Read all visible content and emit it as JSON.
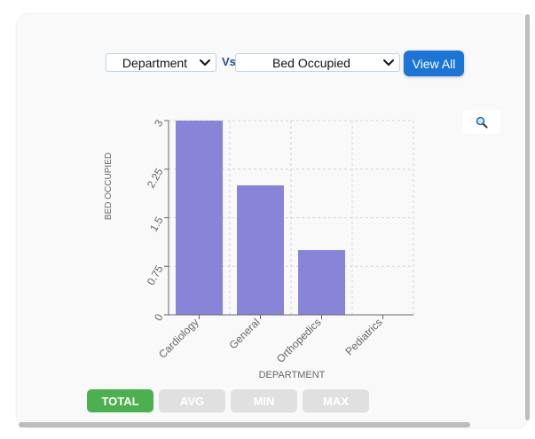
{
  "controls": {
    "x_select": {
      "value": "Department"
    },
    "vs_label": "Vs",
    "y_select": {
      "value": "Bed Occupied"
    },
    "view_all_label": "View All"
  },
  "aggregations": {
    "total": "TOTAL",
    "avg": "AVG",
    "min": "MIN",
    "max": "MAX",
    "active": "TOTAL"
  },
  "zoom_icon": "magnifier-icon",
  "colors": {
    "bar": "#8884d8",
    "primary_button": "#1b75d6",
    "active_agg": "#4caf50",
    "inactive_agg": "#e0e0e0"
  },
  "chart_data": {
    "type": "bar",
    "categories": [
      "Cardiology",
      "General",
      "Orthopedics",
      "Pediatrics"
    ],
    "values": [
      3,
      2,
      1,
      0
    ],
    "xlabel": "DEPARTMENT",
    "ylabel": "BED OCCUPIED",
    "ylim": [
      0,
      3
    ],
    "yticks": [
      "0",
      "0.75",
      "1.5",
      "2.25",
      "3"
    ],
    "grid": true
  }
}
